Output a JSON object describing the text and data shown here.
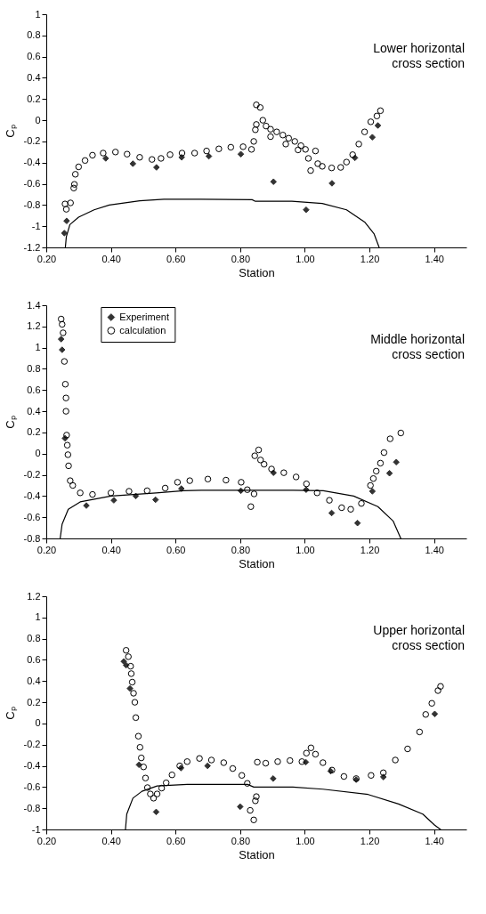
{
  "chart_data": [
    {
      "type": "scatter",
      "annotations": [
        "Lower horizontal\ncross section"
      ],
      "xlabel": "Station",
      "ylabel": "Cₚ",
      "xlim": [
        0.2,
        1.5
      ],
      "xticks": [
        {
          "value": 0.2,
          "label": "0.20"
        },
        {
          "value": 0.4,
          "label": "0.40"
        },
        {
          "value": 0.6,
          "label": "0.60"
        },
        {
          "value": 0.8,
          "label": "0.80"
        },
        {
          "value": 1.0,
          "label": "1.00"
        },
        {
          "value": 1.2,
          "label": "1.20"
        },
        {
          "value": 1.4,
          "label": "1.40"
        }
      ],
      "ylim": [
        -1.2,
        1
      ],
      "yticks": [
        -1.2,
        -1,
        -0.8,
        -0.6,
        -0.4,
        -0.2,
        0,
        0.2,
        0.4,
        0.6,
        0.8,
        1
      ],
      "grid": false,
      "series": [
        {
          "type": "scatter",
          "marker": "diamond",
          "color": "#333333",
          "x": [
            0.256,
            0.263,
            0.384,
            0.468,
            0.541,
            0.619,
            0.703,
            0.802,
            0.903,
            1.004,
            1.084,
            1.155,
            1.209,
            1.226
          ],
          "values": [
            -1.065,
            -0.95,
            -0.36,
            -0.41,
            -0.445,
            -0.35,
            -0.34,
            -0.32,
            -0.58,
            -0.845,
            -0.595,
            -0.355,
            -0.16,
            -0.05
          ]
        },
        {
          "type": "scatter",
          "marker": "circle",
          "color": "#000000",
          "x": [
            0.258,
            0.262,
            0.275,
            0.285,
            0.287,
            0.29,
            0.3,
            0.32,
            0.343,
            0.376,
            0.414,
            0.45,
            0.489,
            0.527,
            0.555,
            0.583,
            0.62,
            0.659,
            0.696,
            0.734,
            0.771,
            0.809,
            0.835,
            0.842,
            0.847,
            0.85,
            0.85,
            0.862,
            0.87,
            0.88,
            0.894,
            0.913,
            0.932,
            0.95,
            0.969,
            0.988,
            1.002,
            1.011,
            1.018,
            1.033,
            1.04,
            1.054,
            1.083,
            1.111,
            1.129,
            1.148,
            1.167,
            1.185,
            1.204,
            1.223,
            1.234,
            0.894,
            0.941,
            0.979
          ],
          "values": [
            -0.79,
            -0.84,
            -0.78,
            -0.64,
            -0.605,
            -0.51,
            -0.44,
            -0.38,
            -0.33,
            -0.31,
            -0.3,
            -0.32,
            -0.35,
            -0.37,
            -0.36,
            -0.325,
            -0.31,
            -0.31,
            -0.29,
            -0.27,
            -0.255,
            -0.25,
            -0.275,
            -0.2,
            -0.09,
            -0.04,
            0.145,
            0.12,
            0,
            -0.055,
            -0.085,
            -0.11,
            -0.14,
            -0.17,
            -0.2,
            -0.24,
            -0.275,
            -0.36,
            -0.475,
            -0.29,
            -0.41,
            -0.435,
            -0.45,
            -0.445,
            -0.395,
            -0.325,
            -0.225,
            -0.11,
            -0.015,
            0.04,
            0.09,
            -0.155,
            -0.225,
            -0.28
          ]
        },
        {
          "type": "line",
          "marker": "none",
          "color": "#000000",
          "x": [
            0.259,
            0.262,
            0.273,
            0.3,
            0.348,
            0.395,
            0.489,
            0.564,
            0.677,
            0.837,
            0.847,
            0.96,
            1.054,
            1.129,
            1.185,
            1.214,
            1.23
          ],
          "values": [
            -1.2,
            -1.1,
            -0.985,
            -0.915,
            -0.845,
            -0.8,
            -0.76,
            -0.745,
            -0.745,
            -0.75,
            -0.765,
            -0.765,
            -0.785,
            -0.845,
            -0.96,
            -1.07,
            -1.2
          ]
        }
      ]
    },
    {
      "type": "scatter",
      "annotations": [
        "Middle horizontal\ncross section"
      ],
      "xlabel": "Station",
      "ylabel": "Cₚ",
      "xlim": [
        0.2,
        1.5
      ],
      "xticks": [
        {
          "value": 0.2,
          "label": "0.20"
        },
        {
          "value": 0.4,
          "label": "0.40"
        },
        {
          "value": 0.6,
          "label": "0.60"
        },
        {
          "value": 0.8,
          "label": "0.80"
        },
        {
          "value": 1.0,
          "label": "1.00"
        },
        {
          "value": 1.2,
          "label": "1.20"
        },
        {
          "value": 1.4,
          "label": "1.40"
        }
      ],
      "ylim": [
        -0.8,
        1.4
      ],
      "yticks": [
        -0.8,
        -0.6,
        -0.4,
        -0.2,
        0,
        0.2,
        0.4,
        0.6,
        0.8,
        1,
        1.2,
        1.4
      ],
      "grid": false,
      "legend": "top left",
      "series": [
        {
          "name": "Experiment",
          "type": "scatter",
          "marker": "diamond",
          "color": "#333333",
          "x": [
            0.246,
            0.249,
            0.258,
            0.324,
            0.409,
            0.477,
            0.538,
            0.618,
            0.802,
            0.903,
            1.004,
            1.083,
            1.163,
            1.209,
            1.262,
            1.283
          ],
          "values": [
            1.08,
            0.98,
            0.145,
            -0.49,
            -0.44,
            -0.4,
            -0.435,
            -0.33,
            -0.35,
            -0.18,
            -0.34,
            -0.56,
            -0.655,
            -0.355,
            -0.185,
            -0.08
          ]
        },
        {
          "name": "calculation",
          "type": "scatter",
          "marker": "circle",
          "color": "#000000",
          "x": [
            0.246,
            0.249,
            0.252,
            0.256,
            0.259,
            0.261,
            0.261,
            0.263,
            0.265,
            0.267,
            0.269,
            0.274,
            0.282,
            0.305,
            0.343,
            0.4,
            0.456,
            0.512,
            0.568,
            0.606,
            0.644,
            0.7,
            0.756,
            0.803,
            0.822,
            0.843,
            0.833,
            0.845,
            0.857,
            0.863,
            0.874,
            0.897,
            0.935,
            0.973,
            1.005,
            1.038,
            1.076,
            1.114,
            1.142,
            1.175,
            1.203,
            1.212,
            1.221,
            1.234,
            1.245,
            1.264,
            1.297
          ],
          "values": [
            1.27,
            1.22,
            1.14,
            0.87,
            0.655,
            0.525,
            0.4,
            0.175,
            0.08,
            -0.01,
            -0.115,
            -0.255,
            -0.3,
            -0.37,
            -0.385,
            -0.37,
            -0.355,
            -0.35,
            -0.325,
            -0.27,
            -0.255,
            -0.24,
            -0.25,
            -0.27,
            -0.34,
            -0.38,
            -0.5,
            -0.02,
            0.035,
            -0.06,
            -0.1,
            -0.145,
            -0.18,
            -0.22,
            -0.285,
            -0.37,
            -0.44,
            -0.51,
            -0.525,
            -0.47,
            -0.3,
            -0.235,
            -0.165,
            -0.09,
            0.01,
            0.14,
            0.195
          ]
        },
        {
          "type": "line",
          "marker": "none",
          "color": "#000000",
          "x": [
            0.243,
            0.249,
            0.268,
            0.305,
            0.4,
            0.54,
            0.625,
            0.68,
            0.963,
            1.057,
            1.151,
            1.226,
            1.273,
            1.297
          ],
          "values": [
            -0.8,
            -0.665,
            -0.525,
            -0.455,
            -0.4,
            -0.37,
            -0.35,
            -0.345,
            -0.345,
            -0.35,
            -0.4,
            -0.5,
            -0.635,
            -0.8
          ]
        }
      ]
    },
    {
      "type": "scatter",
      "annotations": [
        "Upper horizontal\ncross section"
      ],
      "xlabel": "Station",
      "ylabel": "Cₚ",
      "xlim": [
        0.2,
        1.5
      ],
      "xticks": [
        {
          "value": 0.2,
          "label": "0.20"
        },
        {
          "value": 0.4,
          "label": "0.40"
        },
        {
          "value": 0.6,
          "label": "0.60"
        },
        {
          "value": 0.8,
          "label": "0.80"
        },
        {
          "value": 1.0,
          "label": "1.00"
        },
        {
          "value": 1.2,
          "label": "1.20"
        },
        {
          "value": 1.4,
          "label": "1.40"
        }
      ],
      "ylim": [
        -1,
        1.2
      ],
      "yticks": [
        -1,
        -0.8,
        -0.6,
        -0.4,
        -0.2,
        0,
        0.2,
        0.4,
        0.6,
        0.8,
        1,
        1.2
      ],
      "grid": false,
      "series": [
        {
          "type": "scatter",
          "marker": "diamond",
          "color": "#333333",
          "x": [
            0.44,
            0.447,
            0.459,
            0.487,
            0.54,
            0.617,
            0.699,
            0.8,
            0.902,
            1.003,
            1.08,
            1.159,
            1.243,
            1.402
          ],
          "values": [
            0.585,
            0.55,
            0.33,
            -0.39,
            -0.835,
            -0.42,
            -0.4,
            -0.785,
            -0.52,
            -0.365,
            -0.45,
            -0.53,
            -0.505,
            0.09
          ]
        },
        {
          "type": "scatter",
          "marker": "circle",
          "color": "#000000",
          "x": [
            0.447,
            0.454,
            0.461,
            0.463,
            0.466,
            0.47,
            0.474,
            0.477,
            0.485,
            0.49,
            0.494,
            0.501,
            0.507,
            0.513,
            0.522,
            0.532,
            0.543,
            0.557,
            0.571,
            0.589,
            0.613,
            0.636,
            0.674,
            0.711,
            0.749,
            0.777,
            0.805,
            0.822,
            0.85,
            0.847,
            0.831,
            0.842,
            0.853,
            0.879,
            0.916,
            0.954,
            0.991,
            1.005,
            1.019,
            1.033,
            1.056,
            1.084,
            1.121,
            1.159,
            1.205,
            1.243,
            1.28,
            1.318,
            1.355,
            1.374,
            1.393,
            1.412,
            1.42
          ],
          "values": [
            0.69,
            0.63,
            0.54,
            0.47,
            0.39,
            0.285,
            0.2,
            0.055,
            -0.12,
            -0.225,
            -0.325,
            -0.41,
            -0.515,
            -0.605,
            -0.665,
            -0.705,
            -0.665,
            -0.61,
            -0.56,
            -0.485,
            -0.4,
            -0.36,
            -0.33,
            -0.345,
            -0.37,
            -0.425,
            -0.49,
            -0.565,
            -0.69,
            -0.73,
            -0.82,
            -0.91,
            -0.365,
            -0.375,
            -0.36,
            -0.35,
            -0.36,
            -0.28,
            -0.23,
            -0.29,
            -0.37,
            -0.44,
            -0.5,
            -0.52,
            -0.49,
            -0.465,
            -0.345,
            -0.24,
            -0.08,
            0.085,
            0.19,
            0.31,
            0.35
          ]
        },
        {
          "type": "line",
          "marker": "none",
          "color": "#000000",
          "x": [
            0.445,
            0.449,
            0.468,
            0.496,
            0.543,
            0.636,
            0.823,
            0.842,
            0.963,
            1.056,
            1.196,
            1.29,
            1.365,
            1.402,
            1.42
          ],
          "values": [
            -1,
            -0.855,
            -0.705,
            -0.64,
            -0.59,
            -0.575,
            -0.575,
            -0.6,
            -0.6,
            -0.62,
            -0.67,
            -0.76,
            -0.855,
            -0.96,
            -1
          ]
        }
      ]
    }
  ]
}
